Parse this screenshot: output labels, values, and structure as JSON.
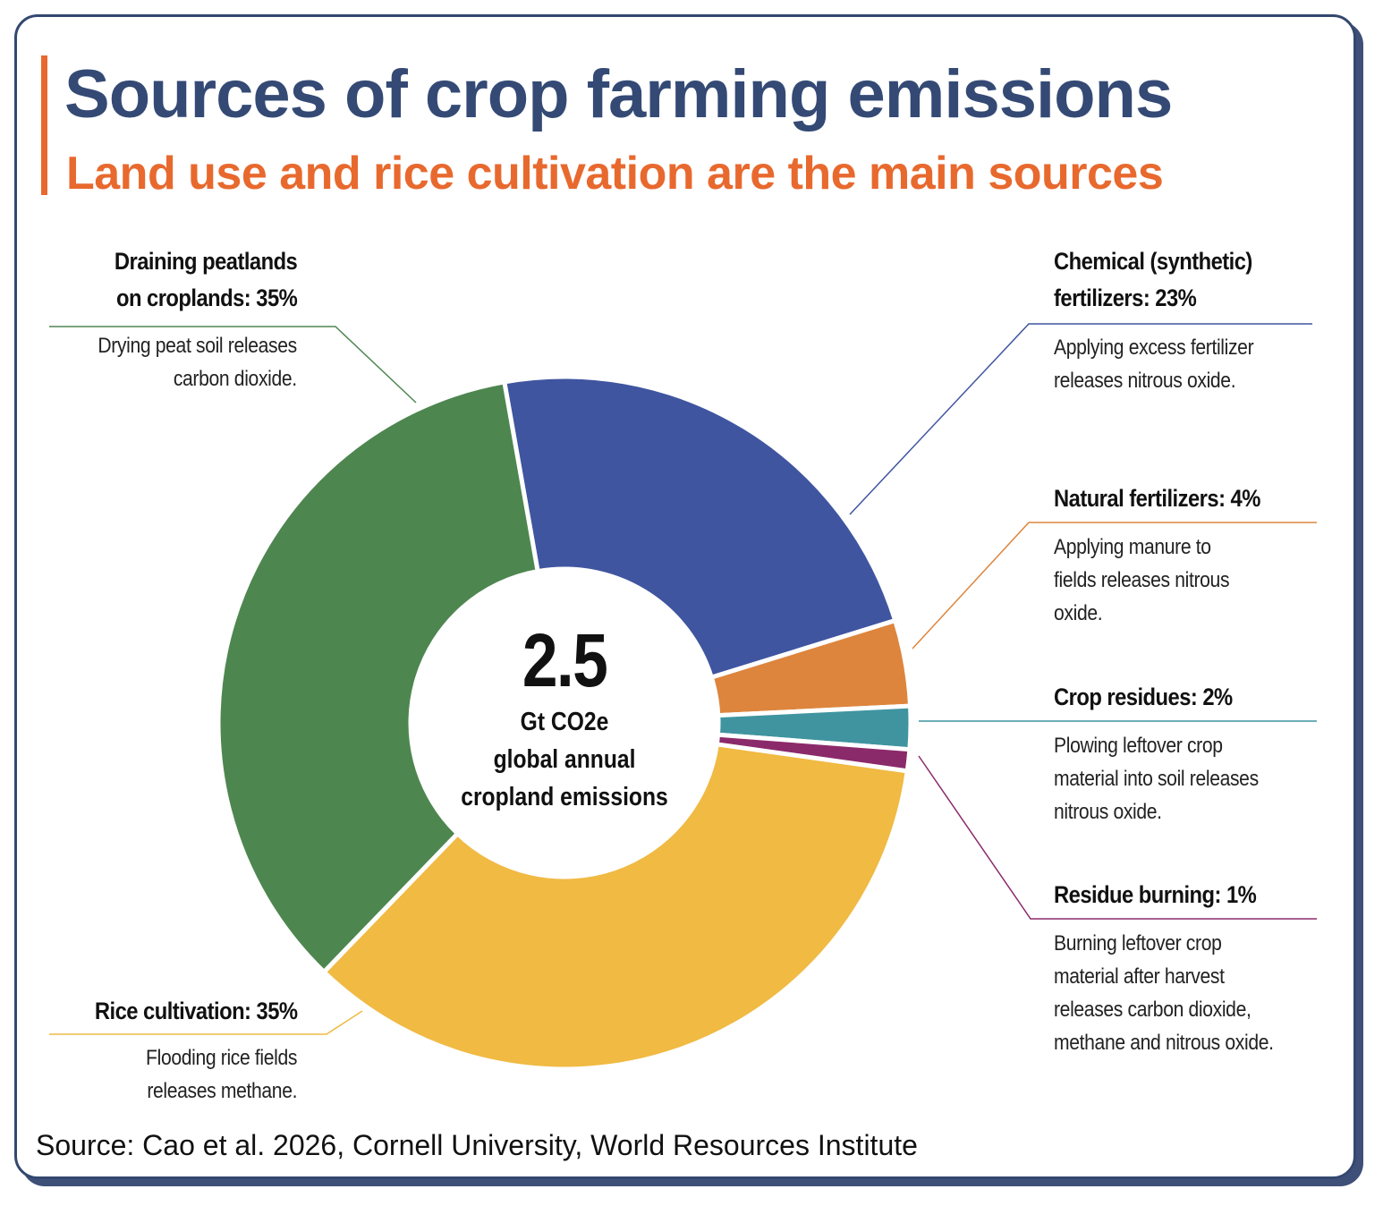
{
  "header": {
    "title": "Sources of crop farming emissions",
    "subtitle": "Land use and rice cultivation are the main sources"
  },
  "center": {
    "value": "2.5",
    "unit": "Gt CO2e",
    "line2": "global annual",
    "line3": "cropland emissions"
  },
  "source": "Source: Cao et al. 2026, Cornell University, World Resources Institute",
  "chart_data": {
    "type": "pie",
    "variant": "donut",
    "title": "Sources of crop farming emissions",
    "subtitle": "Land use and rice cultivation are the main sources",
    "total": 2.5,
    "total_unit": "Gt CO2e global annual cropland emissions",
    "slices": [
      {
        "name": "Chemical (synthetic) fertilizers",
        "value": 23,
        "color": "#3f55a0",
        "label1": "Chemical (synthetic)",
        "label2": "fertilizers: 23%",
        "desc": [
          "Applying excess fertilizer",
          "releases nitrous oxide."
        ]
      },
      {
        "name": "Natural fertilizers",
        "value": 4,
        "color": "#dd853d",
        "label1": "Natural fertilizers: 4%",
        "desc": [
          "Applying manure to",
          "fields releases nitrous",
          "oxide."
        ]
      },
      {
        "name": "Crop residues",
        "value": 2,
        "color": "#3f94a0",
        "label1": "Crop residues: 2%",
        "desc": [
          "Plowing leftover crop",
          "material into soil releases",
          "nitrous oxide."
        ]
      },
      {
        "name": "Residue burning",
        "value": 1,
        "color": "#8b2a6b",
        "label1": "Residue burning: 1%",
        "desc": [
          "Burning leftover crop",
          "material after harvest",
          "releases carbon dioxide,",
          "methane and nitrous oxide."
        ]
      },
      {
        "name": "Rice cultivation",
        "value": 35,
        "color": "#f0ba43",
        "label1": "Rice cultivation: 35%",
        "desc": [
          "Flooding rice fields",
          "releases methane."
        ]
      },
      {
        "name": "Draining peatlands on croplands",
        "value": 35,
        "color": "#4e8650",
        "label1": "Draining peatlands",
        "label2": "on croplands: 35%",
        "desc": [
          "Drying peat soil releases",
          "carbon dioxide."
        ]
      }
    ]
  }
}
